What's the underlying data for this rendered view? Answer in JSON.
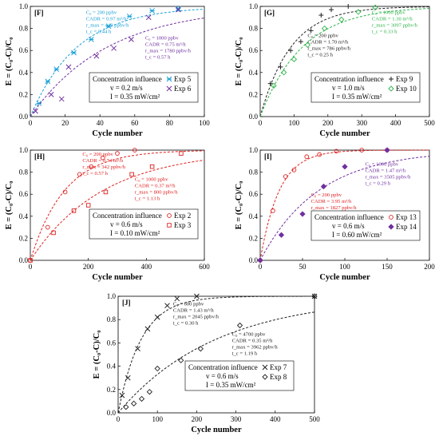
{
  "shared": {
    "xlabel": "Cycle number",
    "ylabel": "E = (C₀-C)/C₀",
    "ylim": [
      0,
      1
    ],
    "y_ticks": [
      "0.0",
      "0.2",
      "0.4",
      "0.6",
      "0.8",
      "1.0"
    ]
  },
  "chart_data": [
    {
      "id": "F",
      "type": "scatter",
      "panel_label": "[F]",
      "xlim": [
        0,
        100
      ],
      "x_ticks": [
        "0",
        "20",
        "40",
        "60",
        "80",
        "100"
      ],
      "conditions": {
        "title": "Concentration influence",
        "lines": [
          "v = 0.2 m/s",
          "I = 0.35  mW/cm²"
        ]
      },
      "series": [
        {
          "name": "Exp 5",
          "marker": "star",
          "color": "#1a9fd6",
          "x": [
            5,
            10,
            15,
            25,
            35,
            45,
            57,
            70,
            85
          ],
          "y": [
            0.12,
            0.32,
            0.43,
            0.58,
            0.7,
            0.82,
            0.91,
            0.96,
            0.98
          ],
          "annotation": [
            "C₀ = 200 ppbv",
            "CADR = 0.97 m³/h",
            "r_max = 449 ppbv/h",
            "t_c = 0.44 h"
          ],
          "anno_color": "#1a9fd6"
        },
        {
          "name": "Exp 6",
          "marker": "x",
          "color": "#7030a0",
          "x": [
            3,
            12,
            18,
            22,
            38,
            48,
            58,
            68,
            85
          ],
          "y": [
            0.05,
            0.2,
            0.16,
            0.45,
            0.55,
            0.62,
            0.7,
            0.9,
            0.97
          ],
          "annotation": [
            "C₀ = 1000 ppbv",
            "CADR = 0.75 m³/h",
            "r_max = 1780 ppbv/h",
            "t_c = 0.57 h"
          ],
          "anno_color": "#7030a0"
        }
      ]
    },
    {
      "id": "G",
      "type": "scatter",
      "panel_label": "[G]",
      "xlim": [
        0,
        500
      ],
      "x_ticks": [
        "0",
        "100",
        "200",
        "300",
        "400",
        "500"
      ],
      "conditions": {
        "title": "Concentration influence",
        "lines": [
          "v = 1.0 m/s",
          "I = 0.35  mW/cm²"
        ]
      },
      "series": [
        {
          "name": "Exp 9",
          "marker": "plus",
          "color": "#222222",
          "x": [
            30,
            60,
            90,
            120,
            150,
            180,
            210,
            260
          ],
          "y": [
            0.3,
            0.45,
            0.6,
            0.68,
            0.78,
            0.92,
            0.97,
            1.0
          ],
          "annotation": [
            "C₀ = 200 ppbv",
            "CADR = 1.70 m³/h",
            "r_max = 786 ppbv/h",
            "t_c = 0.25 h"
          ],
          "anno_color": "#222222"
        },
        {
          "name": "Exp 10",
          "marker": "diamond",
          "color": "#2eb34a",
          "x": [
            40,
            70,
            100,
            140,
            190,
            240,
            290,
            340
          ],
          "y": [
            0.28,
            0.4,
            0.52,
            0.65,
            0.8,
            0.88,
            0.95,
            0.99
          ],
          "annotation": [
            "C₀ = 1000 ppbv",
            "CADR = 1.30 m³/h",
            "r_max = 3097 ppbv/h",
            "t_c = 0.33 h"
          ],
          "anno_color": "#2eb34a"
        }
      ]
    },
    {
      "id": "H",
      "type": "scatter",
      "panel_label": "[H]",
      "xlim": [
        0,
        600
      ],
      "x_ticks": [
        "0",
        "200",
        "400",
        "600"
      ],
      "conditions": {
        "title": "Concentration influence",
        "lines": [
          "v = 0.6 m/s",
          "I = 0.10  mW/cm²"
        ]
      },
      "series": [
        {
          "name": "Exp 2",
          "marker": "circle",
          "color": "#e02020",
          "x": [
            0,
            60,
            120,
            170,
            210,
            250,
            300,
            360
          ],
          "y": [
            0.0,
            0.3,
            0.62,
            0.78,
            0.85,
            0.93,
            0.97,
            1.0
          ],
          "annotation": [
            "C₀ = 200 ppbv",
            "CADR = 0.74 m³/h",
            "r_max = 342 ppbv/h",
            "t_c = 0.57 h"
          ],
          "anno_color": "#e02020"
        },
        {
          "name": "Exp 3",
          "marker": "square",
          "color": "#e02020",
          "x": [
            0,
            80,
            150,
            200,
            260,
            350,
            420,
            520
          ],
          "y": [
            0.0,
            0.25,
            0.45,
            0.5,
            0.62,
            0.78,
            0.85,
            0.97
          ],
          "annotation": [
            "C₀ = 1000 ppbv",
            "CADR = 0.37 m³/h",
            "r_max = 800 ppbv/h",
            "t_c = 1.13 h"
          ],
          "anno_color": "#e02020"
        }
      ]
    },
    {
      "id": "I",
      "type": "scatter",
      "panel_label": "[I]",
      "xlim": [
        0,
        200
      ],
      "x_ticks": [
        "0",
        "50",
        "100",
        "150",
        "200"
      ],
      "conditions": {
        "title": "Concentration influence",
        "lines": [
          "v = 0.6 m/s",
          "I = 0.60  mW/cm²"
        ]
      },
      "series": [
        {
          "name": "Exp 13",
          "marker": "circle",
          "color": "#e02020",
          "x": [
            0,
            15,
            30,
            40,
            55,
            70,
            90,
            120,
            150
          ],
          "y": [
            0.0,
            0.45,
            0.76,
            0.82,
            0.94,
            0.96,
            0.99,
            1.0,
            1.0
          ],
          "annotation": [
            "C₀ = 200 ppbv",
            "CADR = 3.95 m³/h",
            "r_max = 1827 ppbv/h",
            "t_c = 0.11 h"
          ],
          "anno_color": "#e02020"
        },
        {
          "name": "Exp 14",
          "marker": "filled-diamond",
          "color": "#7030a0",
          "x": [
            0,
            25,
            50,
            75,
            100,
            150
          ],
          "y": [
            0.0,
            0.23,
            0.42,
            0.67,
            0.85,
            1.0
          ],
          "annotation": [
            "C₀ = 1000 ppbv",
            "CADR = 1.47 m³/h",
            "r_max = 3505 ppbv/h",
            "t_c = 0.29 h"
          ],
          "anno_color": "#7030a0"
        }
      ]
    },
    {
      "id": "J",
      "type": "scatter",
      "panel_label": "[J]",
      "xlim": [
        0,
        500
      ],
      "x_ticks": [
        "0",
        "100",
        "200",
        "300",
        "400",
        "500"
      ],
      "conditions": {
        "title": "Concentration influence",
        "lines": [
          "v = 0.6 m/s",
          "I = 0.35  mW/cm²"
        ]
      },
      "series": [
        {
          "name": "Exp 7",
          "marker": "x",
          "color": "#222222",
          "x": [
            10,
            25,
            50,
            75,
            100,
            125,
            150,
            200,
            500
          ],
          "y": [
            0.15,
            0.3,
            0.55,
            0.72,
            0.82,
            0.92,
            0.98,
            1.0,
            1.0
          ],
          "annotation": [
            "C₀ = 600 ppbv",
            "CADR = 1.43 m³/h",
            "r_max = 2045 ppbv/h",
            "t_c = 0.30 h"
          ],
          "anno_color": "#222222"
        },
        {
          "name": "Exp 8",
          "marker": "diamond",
          "color": "#222222",
          "x": [
            20,
            40,
            60,
            80,
            100,
            160,
            210,
            310,
            500
          ],
          "y": [
            0.05,
            0.08,
            0.12,
            0.18,
            0.38,
            0.45,
            0.55,
            0.75,
            1.0
          ],
          "annotation": [
            "C₀ = 4700 ppbv",
            "CADR = 0.35 m³/h",
            "r_max = 3962 ppbv/h",
            "t_c = 1.19 h"
          ],
          "anno_color": "#222222"
        }
      ]
    }
  ]
}
